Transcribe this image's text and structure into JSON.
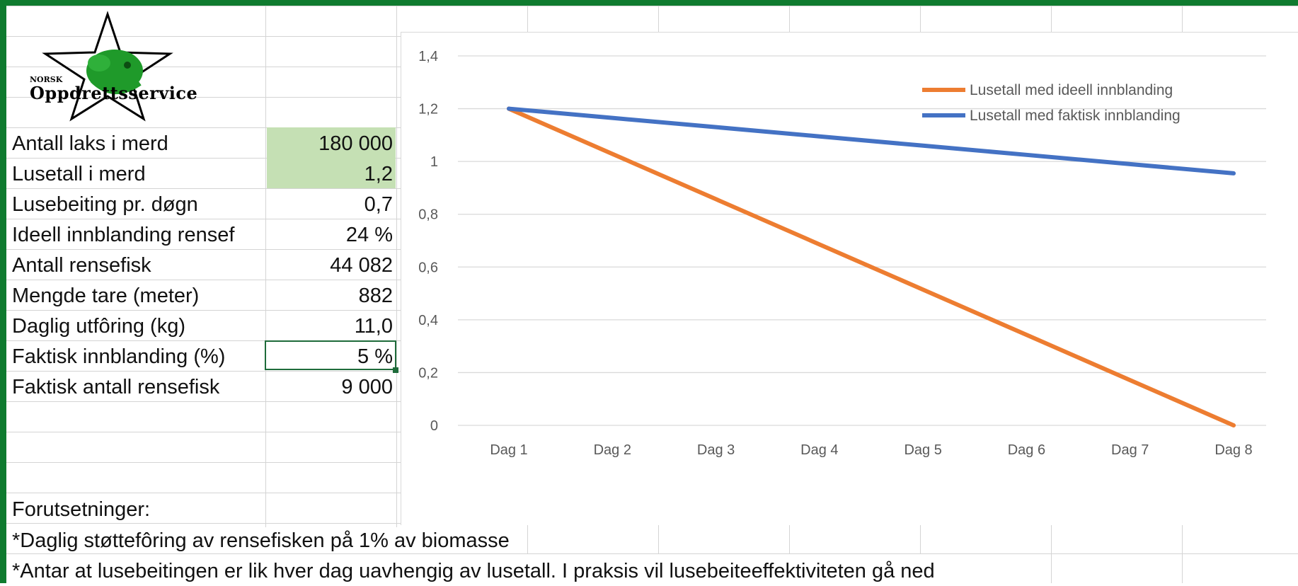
{
  "logo": {
    "small_text": "NORSK",
    "big_text": "Oppdrettsservice"
  },
  "rows": [
    {
      "label": "Antall laks i merd",
      "value": "180 000"
    },
    {
      "label": "Lusetall i merd",
      "value": "1,2"
    },
    {
      "label": "Lusebeiting pr. døgn",
      "value": "0,7"
    },
    {
      "label": "Ideell innblanding rensef",
      "value": "24 %"
    },
    {
      "label": "Antall rensefisk",
      "value": "44 082"
    },
    {
      "label": "Mengde tare (meter)",
      "value": "882"
    },
    {
      "label": "Daglig utfôring (kg)",
      "value": "11,0"
    },
    {
      "label": "Faktisk innblanding  (%)",
      "value": "5 %"
    },
    {
      "label": "Faktisk antall rensefisk",
      "value": "9 000"
    }
  ],
  "assumptions_title": "Forutsetninger:",
  "footnotes": [
    "*Daglig støttefôring av rensefisken på 1% av biomasse",
    "*Antar at lusebeitingen er lik hver dag uavhengig av lusetall. I praksis vil lusebeiteeffektiviteten gå ned"
  ],
  "colors": {
    "frame": "#0f7b2f",
    "input_fill": "#c5e0b4",
    "series_ideal": "#ed7d31",
    "series_actual": "#4472c4"
  },
  "chart_data": {
    "type": "line",
    "categories": [
      "Dag 1",
      "Dag 2",
      "Dag 3",
      "Dag 4",
      "Dag 5",
      "Dag 6",
      "Dag 7",
      "Dag 8"
    ],
    "series": [
      {
        "name": "Lusetall med ideell innblanding",
        "color": "#ed7d31",
        "values": [
          1.2,
          1.0286,
          0.8571,
          0.6857,
          0.5143,
          0.3429,
          0.1714,
          0.0
        ]
      },
      {
        "name": "Lusetall med faktisk innblanding",
        "color": "#4472c4",
        "values": [
          1.2,
          1.165,
          1.13,
          1.095,
          1.06,
          1.025,
          0.99,
          0.955
        ]
      }
    ],
    "yticks": [
      "0",
      "0,2",
      "0,4",
      "0,6",
      "0,8",
      "1",
      "1,2",
      "1,4"
    ],
    "ytick_values": [
      0,
      0.2,
      0.4,
      0.6,
      0.8,
      1.0,
      1.2,
      1.4
    ],
    "ylim": [
      0,
      1.4
    ],
    "grid": true,
    "legend_position": "top-right"
  }
}
